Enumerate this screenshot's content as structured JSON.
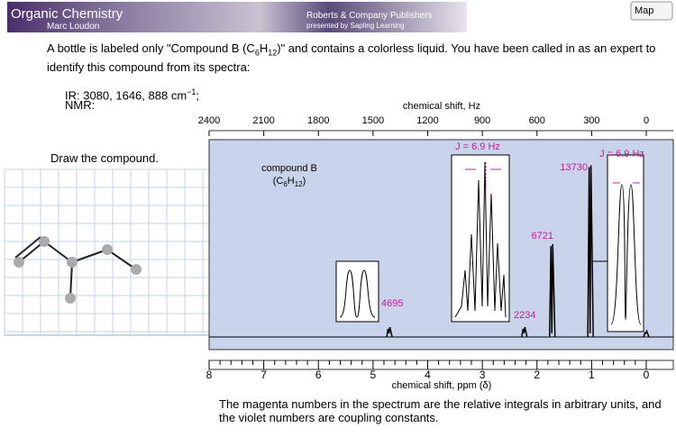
{
  "header": {
    "title": "Organic Chemistry",
    "author": "Marc Loudon",
    "publisher": "Roberts & Company Publishers",
    "presenter": "presented by Sapling Learning",
    "map_button": "Map"
  },
  "question": {
    "text_before": "A bottle is labeled only \"Compound B (C",
    "sub1": "6",
    "h": "H",
    "sub2": "12",
    "text_after": ")\" and contains a colorless liquid. You have been called in as an expert to identify this compound from its spectra:"
  },
  "ir": {
    "text": "IR: 3080, 1646, 888 cm",
    "sup": "−1",
    "end": ";"
  },
  "nmr_label": "NMR:",
  "draw_prompt": "Draw the compound.",
  "spectrum": {
    "top_axis_label": "chemical shift, Hz",
    "top_ticks": [
      2400,
      2100,
      1800,
      1500,
      1200,
      900,
      600,
      300,
      0
    ],
    "top_lim": [
      2400,
      0
    ],
    "bottom_axis_label": "chemical shift, ppm (δ)",
    "bottom_ticks": [
      8,
      7,
      6,
      5,
      4,
      3,
      2,
      1,
      0
    ],
    "bottom_lim": [
      8,
      0
    ],
    "compound_label": "compound B",
    "formula_open": "(C",
    "formula_sub1": "6",
    "formula_h": "H",
    "formula_sub2": "12",
    "formula_close": ")",
    "coupling_1": "J = 6.9 Hz",
    "coupling_2": "J = 6.9 Hz",
    "peaks": [
      {
        "shift": 4.7,
        "height": 0.05,
        "integral": 4695
      },
      {
        "shift": 2.23,
        "height": 0.05,
        "integral": 2234
      },
      {
        "shift": 1.72,
        "height": 0.47,
        "integral": 6721
      },
      {
        "shift": 1.02,
        "height": 0.87,
        "integral": 13730
      },
      {
        "shift": 0,
        "height": 0.03,
        "integral": null
      }
    ]
  },
  "footer_note": "The magenta numbers in the spectrum are the relative integrals in arbitrary units, and the violet numbers are coupling constants."
}
